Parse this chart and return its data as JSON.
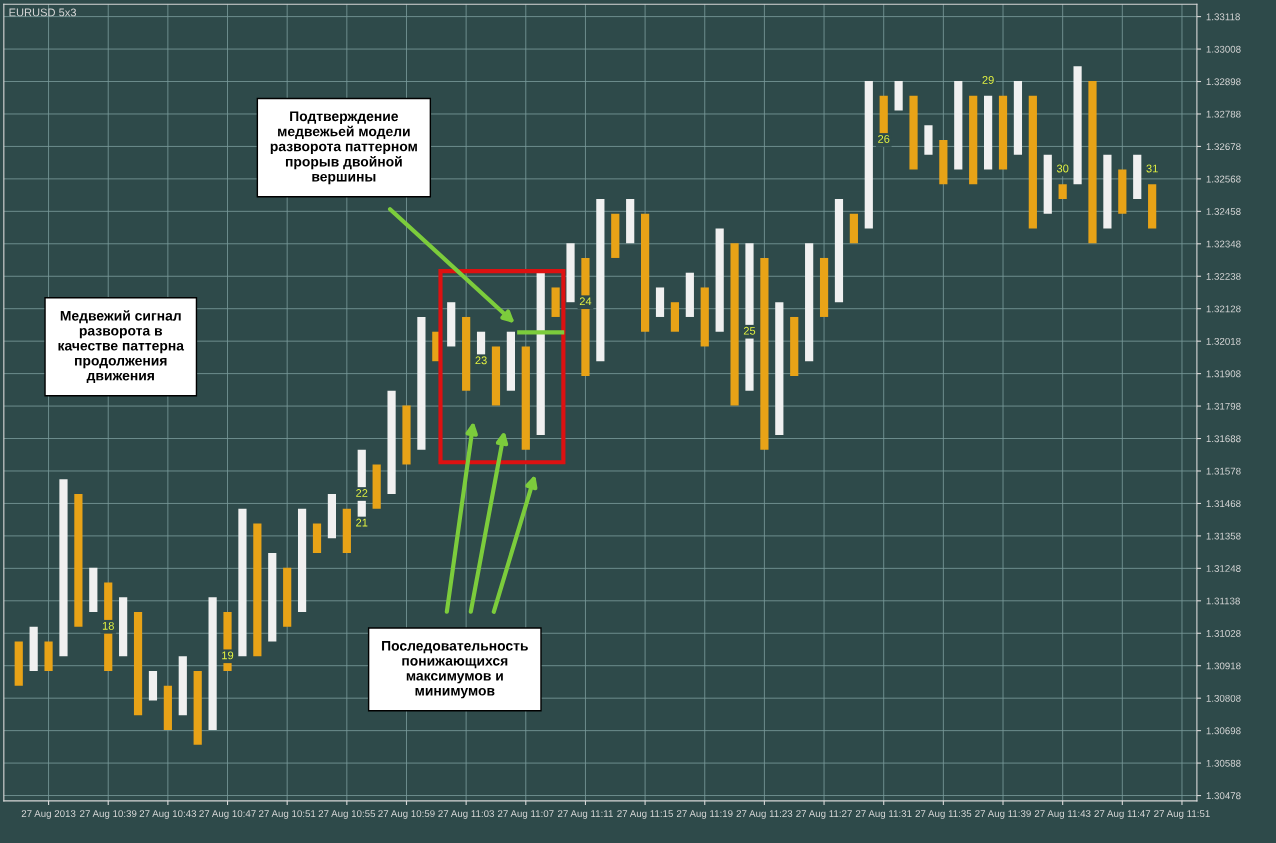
{
  "chart_data": {
    "type": "bar",
    "title": "EURUSD 5x3",
    "series": [
      {
        "color": "#f0f0f0",
        "x": [
          "2013-08-27T10:34",
          "2013-08-27T10:36",
          "2013-08-27T10:38",
          "2013-08-27T10:40",
          "2013-08-27T10:42",
          "2013-08-27T10:44",
          "2013-08-27T10:46",
          "2013-08-27T10:48",
          "2013-08-27T10:50",
          "2013-08-27T10:52",
          "2013-08-27T10:54",
          "2013-08-27T10:56",
          "2013-08-27T10:58",
          "2013-08-27T11:00",
          "2013-08-27T11:02",
          "2013-08-27T11:04",
          "2013-08-27T11:06",
          "2013-08-27T11:08",
          "2013-08-27T11:10",
          "2013-08-27T11:12",
          "2013-08-27T11:14",
          "2013-08-27T11:16",
          "2013-08-27T11:18",
          "2013-08-27T11:20",
          "2013-08-27T11:22",
          "2013-08-27T11:24",
          "2013-08-27T11:26",
          "2013-08-27T11:28",
          "2013-08-27T11:30",
          "2013-08-27T11:32",
          "2013-08-27T11:34",
          "2013-08-27T11:36",
          "2013-08-27T11:38",
          "2013-08-27T11:40",
          "2013-08-27T11:42",
          "2013-08-27T11:44",
          "2013-08-27T11:46",
          "2013-08-27T11:48"
        ],
        "base": [
          1.309,
          1.3095,
          1.311,
          1.3095,
          1.308,
          1.3075,
          1.307,
          1.3095,
          1.31,
          1.311,
          1.3135,
          1.314,
          1.315,
          1.3165,
          1.32,
          1.3195,
          1.3185,
          1.317,
          1.3215,
          1.3195,
          1.3235,
          1.321,
          1.321,
          1.3205,
          1.3185,
          1.317,
          1.3195,
          1.3215,
          1.324,
          1.328,
          1.3265,
          1.326,
          1.326,
          1.3265,
          1.3245,
          1.3255,
          1.324,
          1.325
        ],
        "values": [
          0.0015,
          0.006,
          0.0015,
          0.002,
          0.001,
          0.002,
          0.0045,
          0.005,
          0.003,
          0.0035,
          0.0015,
          0.0025,
          0.0035,
          0.0045,
          0.0015,
          0.001,
          0.002,
          0.0055,
          0.002,
          0.0055,
          0.0015,
          0.001,
          0.0015,
          0.0035,
          0.005,
          0.0045,
          0.004,
          0.0035,
          0.005,
          0.001,
          0.001,
          0.003,
          0.0025,
          0.0025,
          0.002,
          0.004,
          0.0025,
          0.0015
        ]
      },
      {
        "color": "#e8a317",
        "x": [
          "2013-08-27T10:33",
          "2013-08-27T10:35",
          "2013-08-27T10:37",
          "2013-08-27T10:39",
          "2013-08-27T10:41",
          "2013-08-27T10:43",
          "2013-08-27T10:45",
          "2013-08-27T10:47",
          "2013-08-27T10:49",
          "2013-08-27T10:51",
          "2013-08-27T10:53",
          "2013-08-27T10:55",
          "2013-08-27T10:57",
          "2013-08-27T10:59",
          "2013-08-27T11:01",
          "2013-08-27T11:03",
          "2013-08-27T11:05",
          "2013-08-27T11:07",
          "2013-08-27T11:09",
          "2013-08-27T11:11",
          "2013-08-27T11:13",
          "2013-08-27T11:15",
          "2013-08-27T11:17",
          "2013-08-27T11:19",
          "2013-08-27T11:21",
          "2013-08-27T11:23",
          "2013-08-27T11:25",
          "2013-08-27T11:27",
          "2013-08-27T11:29",
          "2013-08-27T11:31",
          "2013-08-27T11:33",
          "2013-08-27T11:35",
          "2013-08-27T11:37",
          "2013-08-27T11:39",
          "2013-08-27T11:41",
          "2013-08-27T11:43",
          "2013-08-27T11:45",
          "2013-08-27T11:47",
          "2013-08-27T11:49"
        ],
        "base": [
          1.3085,
          1.309,
          1.3105,
          1.309,
          1.3075,
          1.307,
          1.3065,
          1.309,
          1.3095,
          1.3105,
          1.313,
          1.313,
          1.3145,
          1.316,
          1.3195,
          1.3185,
          1.318,
          1.3165,
          1.321,
          1.319,
          1.323,
          1.3205,
          1.3205,
          1.32,
          1.318,
          1.3165,
          1.319,
          1.321,
          1.3235,
          1.327,
          1.326,
          1.3255,
          1.3255,
          1.326,
          1.324,
          1.325,
          1.3235,
          1.3245,
          1.324
        ],
        "values": [
          0.0015,
          0.001,
          0.0045,
          0.003,
          0.0035,
          0.0015,
          0.0025,
          0.002,
          0.0045,
          0.002,
          0.001,
          0.0015,
          0.0015,
          0.002,
          0.001,
          0.0025,
          0.002,
          0.0035,
          0.001,
          0.004,
          0.0015,
          0.004,
          0.001,
          0.002,
          0.0055,
          0.0065,
          0.002,
          0.002,
          0.001,
          0.0015,
          0.0025,
          0.0015,
          0.003,
          0.0025,
          0.0045,
          0.0005,
          0.0055,
          0.0015,
          0.0015
        ]
      }
    ],
    "xlim": [
      "2013-08-27T10:32",
      "2013-08-27T11:52"
    ],
    "xticks": [
      {
        "value": "2013-08-27T10:35",
        "label": "27 Aug 2013"
      },
      {
        "value": "2013-08-27T10:39",
        "label": "27 Aug 10:39"
      },
      {
        "value": "2013-08-27T10:43",
        "label": "27 Aug 10:43"
      },
      {
        "value": "2013-08-27T10:47",
        "label": "27 Aug 10:47"
      },
      {
        "value": "2013-08-27T10:51",
        "label": "27 Aug 10:51"
      },
      {
        "value": "2013-08-27T10:55",
        "label": "27 Aug 10:55"
      },
      {
        "value": "2013-08-27T10:59",
        "label": "27 Aug 10:59"
      },
      {
        "value": "2013-08-27T11:03",
        "label": "27 Aug 11:03"
      },
      {
        "value": "2013-08-27T11:07",
        "label": "27 Aug 11:07"
      },
      {
        "value": "2013-08-27T11:11",
        "label": "27 Aug 11:11"
      },
      {
        "value": "2013-08-27T11:15",
        "label": "27 Aug 11:15"
      },
      {
        "value": "2013-08-27T11:19",
        "label": "27 Aug 11:19"
      },
      {
        "value": "2013-08-27T11:23",
        "label": "27 Aug 11:23"
      },
      {
        "value": "2013-08-27T11:27",
        "label": "27 Aug 11:27"
      },
      {
        "value": "2013-08-27T11:31",
        "label": "27 Aug 11:31"
      },
      {
        "value": "2013-08-27T11:35",
        "label": "27 Aug 11:35"
      },
      {
        "value": "2013-08-27T11:39",
        "label": "27 Aug 11:39"
      },
      {
        "value": "2013-08-27T11:43",
        "label": "27 Aug 11:43"
      },
      {
        "value": "2013-08-27T11:47",
        "label": "27 Aug 11:47"
      },
      {
        "value": "2013-08-27T11:51",
        "label": "27 Aug 11:51"
      }
    ],
    "ylim": [
      1.3046,
      1.3316
    ],
    "yticks": [
      1.30478,
      1.30588,
      1.30698,
      1.30808,
      1.30918,
      1.31028,
      1.31138,
      1.31248,
      1.31358,
      1.31468,
      1.31578,
      1.31688,
      1.31798,
      1.31908,
      1.32018,
      1.32128,
      1.32238,
      1.32348,
      1.32458,
      1.32568,
      1.32678,
      1.32788,
      1.32898,
      1.33008,
      1.33118
    ],
    "grid": true,
    "annotations": [
      "Медвежий сигнал\nразворота в\nкачестве паттерна\nпродолжения\nдвижения",
      "Подтверждение\nмедвежьей модели\nразворота паттерном\nпрорыв двойной\nвершины",
      "Последовательность\nпонижающихся\nмаксимумов и\nминимумов",
      {
        "text": "18",
        "x": "2013-08-27T10:39",
        "y": 1.3105
      },
      {
        "text": "19",
        "x": "2013-08-27T10:47",
        "y": 1.3095
      },
      {
        "text": "21",
        "x": "2013-08-27T10:56",
        "y": 1.314
      },
      {
        "text": "22",
        "x": "2013-08-27T10:56",
        "y": 1.315
      },
      {
        "text": "23",
        "x": "2013-08-27T11:04",
        "y": 1.3195
      },
      {
        "text": "24",
        "x": "2013-08-27T11:11",
        "y": 1.3215
      },
      {
        "text": "25",
        "x": "2013-08-27T11:22",
        "y": 1.3205
      },
      {
        "text": "26",
        "x": "2013-08-27T11:31",
        "y": 1.327
      },
      {
        "text": "29",
        "x": "2013-08-27T11:38",
        "y": 1.329
      },
      {
        "text": "30",
        "x": "2013-08-27T11:43",
        "y": 1.326
      },
      {
        "text": "31",
        "x": "2013-08-27T11:49",
        "y": 1.326
      }
    ]
  }
}
